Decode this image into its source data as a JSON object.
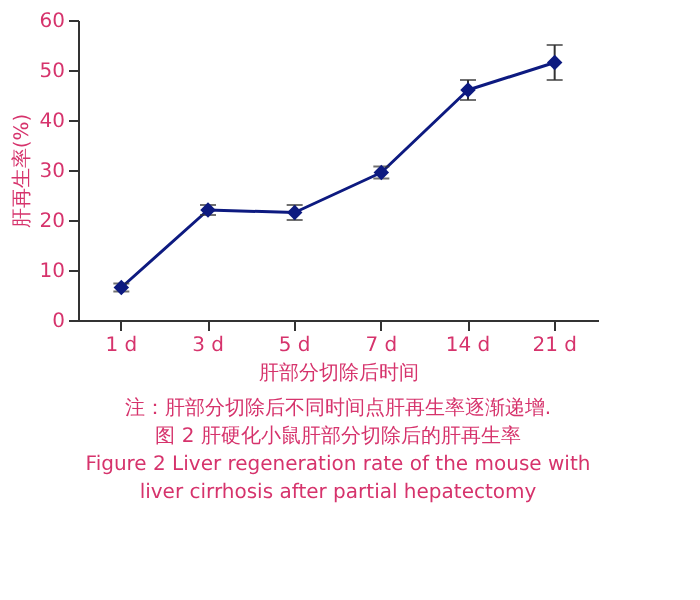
{
  "chart_data": {
    "type": "line",
    "categories": [
      "1 d",
      "3 d",
      "5 d",
      "7 d",
      "14 d",
      "21 d"
    ],
    "series": [
      {
        "color": "#0d1a80",
        "values": [
          6.5,
          22,
          21.5,
          29.5,
          46,
          51.5
        ],
        "errors": [
          0.8,
          1,
          1.5,
          1.2,
          2,
          3.5
        ]
      }
    ],
    "ylim": [
      0,
      60
    ],
    "yticks": [
      0,
      10,
      20,
      30,
      40,
      50,
      60
    ],
    "xlabel": "肝部分切除后时间",
    "ylabel": "肝再生率(%)",
    "marker": "diamond",
    "line_style": "solid",
    "grid": false,
    "annotations": [
      "注：肝部分切除后不同时间点肝再生率逐渐递增.",
      "图 2   肝硬化小鼠肝部分切除后的肝再生率",
      "Figure 2   Liver regeneration rate of the mouse with liver cirrhosis after partial hepatectomy"
    ]
  }
}
